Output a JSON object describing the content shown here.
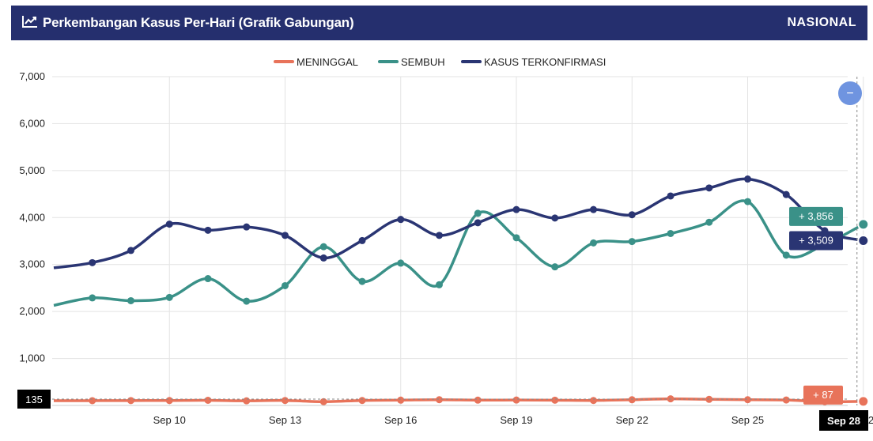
{
  "header": {
    "title": "Perkembangan Kasus Per-Hari (Grafik Gabungan)",
    "scope": "NASIONAL",
    "icon": "chart-line-icon"
  },
  "chart_data": {
    "type": "line",
    "title": "Perkembangan Kasus Per-Hari (Grafik Gabungan)",
    "x": [
      "Sep 7",
      "Sep 8",
      "Sep 9",
      "Sep 10",
      "Sep 11",
      "Sep 12",
      "Sep 13",
      "Sep 14",
      "Sep 15",
      "Sep 16",
      "Sep 17",
      "Sep 18",
      "Sep 19",
      "Sep 20",
      "Sep 21",
      "Sep 22",
      "Sep 23",
      "Sep 24",
      "Sep 25",
      "Sep 26",
      "Sep 27",
      "Sep 28"
    ],
    "x_ticks": [
      "Sep 10",
      "Sep 13",
      "Sep 16",
      "Sep 19",
      "Sep 22",
      "Sep 25",
      "Sep 28"
    ],
    "ylim": [
      0,
      7000
    ],
    "y_ticks": [
      0,
      1000,
      2000,
      3000,
      4000,
      5000,
      6000,
      7000
    ],
    "y_tick_labels": [
      "0",
      "1,000",
      "2,000",
      "3,000",
      "4,000",
      "5,000",
      "6,000",
      "7,000"
    ],
    "legend_position": "top-center",
    "grid": true,
    "series": [
      {
        "name": "MENINGGAL",
        "color": "#e8735a",
        "values": [
          100,
          102,
          104,
          105,
          110,
          98,
          106,
          80,
          106,
          113,
          122,
          113,
          115,
          112,
          106,
          121,
          141,
          130,
          122,
          116,
          80,
          87
        ],
        "badge": "+ 87"
      },
      {
        "name": "SEMBUH",
        "color": "#3a9188",
        "values": [
          2130,
          2290,
          2230,
          2300,
          2700,
          2220,
          2550,
          3380,
          2640,
          3030,
          2570,
          4090,
          3570,
          2950,
          3460,
          3490,
          3660,
          3900,
          4340,
          3200,
          3430,
          3856
        ],
        "badge": "+ 3,856"
      },
      {
        "name": "KASUS TERKONFIRMASI",
        "color": "#2a3573",
        "values": [
          2930,
          3040,
          3300,
          3860,
          3730,
          3800,
          3620,
          3140,
          3510,
          3960,
          3620,
          3890,
          4170,
          3990,
          4170,
          4060,
          4460,
          4630,
          4820,
          4490,
          3720,
          3509
        ],
        "badge": "+ 3,509"
      }
    ],
    "crosshair_x_label": "Sep 28",
    "crosshair_y_label": "135",
    "zoom_button": "−"
  }
}
